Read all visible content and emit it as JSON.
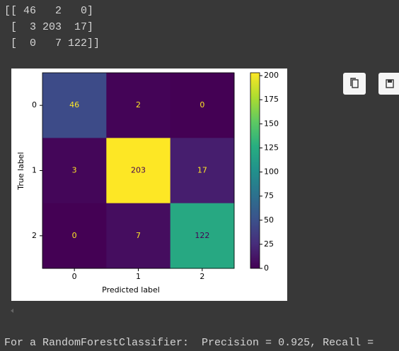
{
  "output": {
    "array_lines": [
      "[[ 46   2   0]",
      " [  3 203  17]",
      " [  0   7 122]]"
    ],
    "summary": "For a RandomForestClassifier:  Precision = 0.925, Recall ="
  },
  "chart_data": {
    "type": "heatmap",
    "x_label": "Predicted label",
    "y_label": "True label",
    "x_categories": [
      "0",
      "1",
      "2"
    ],
    "y_categories": [
      "0",
      "1",
      "2"
    ],
    "values": [
      [
        46,
        2,
        0
      ],
      [
        3,
        203,
        17
      ],
      [
        0,
        7,
        122
      ]
    ],
    "clim": [
      0,
      203
    ],
    "colorbar_ticks": [
      0,
      25,
      50,
      75,
      100,
      125,
      150,
      175,
      200
    ],
    "colormap": [
      "#440154",
      "#472d7b",
      "#3b528b",
      "#2c728e",
      "#21918c",
      "#28ae80",
      "#5ec962",
      "#addc30",
      "#fde725"
    ]
  }
}
